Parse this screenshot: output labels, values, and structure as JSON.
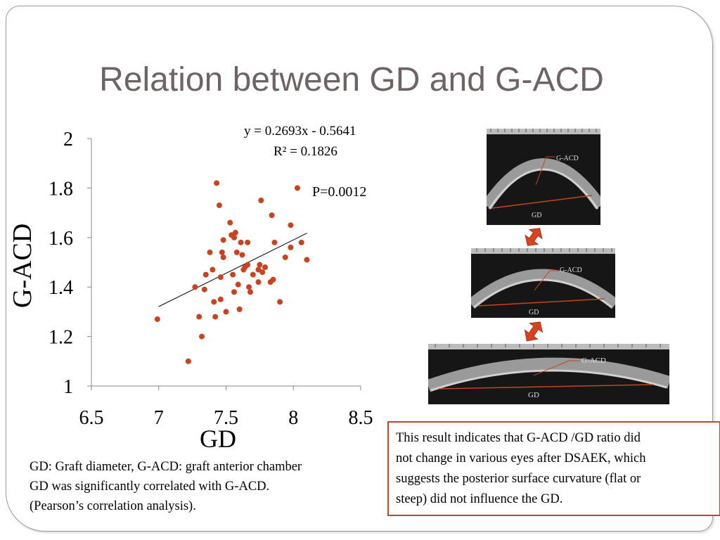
{
  "slide": {
    "title": "Relation between GD and G-ACD",
    "equation_line1": "y = 0.2693x - 0.5641",
    "equation_line2": "R² = 0.1826",
    "p_value": "P=0.0012",
    "caption_lines": [
      "GD: Graft diameter, G-ACD: graft  anterior chamber",
      "GD was significantly correlated with G-ACD.",
      "(Pearson’s correlation analysis)."
    ],
    "result_text_lines": [
      "This result indicates that G-ACD /GD ratio did",
      "not change in various eyes after DSAEK, which",
      "suggests the posterior surface curvature (flat or",
      "steep) did not influence the GD."
    ],
    "images": [
      {
        "label_gacd": "G-ACD",
        "label_gd": "GD"
      },
      {
        "label_gacd": "G-ACD",
        "label_gd": "GD"
      },
      {
        "label_gacd": "G-ACD",
        "label_gd": "GD"
      }
    ],
    "colors": {
      "points": "#c8431f",
      "arrow": "#d8431e",
      "title": "#6e6464",
      "box_border": "#c7432a"
    }
  },
  "chart_data": {
    "type": "scatter",
    "xlabel": "GD",
    "ylabel": "G-ACD",
    "xlim": [
      6.5,
      8.5
    ],
    "ylim": [
      1,
      2
    ],
    "xticks": [
      "6.5",
      "7",
      "7.5",
      "8",
      "8.5"
    ],
    "yticks": [
      "1",
      "1.2",
      "1.4",
      "1.6",
      "1.8",
      "2"
    ],
    "trendline": {
      "slope": 0.2693,
      "intercept": -0.5641,
      "x_range": [
        7.0,
        8.1
      ]
    },
    "points": [
      [
        6.99,
        1.27
      ],
      [
        7.22,
        1.1
      ],
      [
        7.27,
        1.4
      ],
      [
        7.3,
        1.28
      ],
      [
        7.32,
        1.2
      ],
      [
        7.34,
        1.39
      ],
      [
        7.35,
        1.45
      ],
      [
        7.38,
        1.54
      ],
      [
        7.4,
        1.47
      ],
      [
        7.41,
        1.34
      ],
      [
        7.42,
        1.28
      ],
      [
        7.43,
        1.82
      ],
      [
        7.45,
        1.73
      ],
      [
        7.46,
        1.35
      ],
      [
        7.46,
        1.44
      ],
      [
        7.47,
        1.54
      ],
      [
        7.48,
        1.52
      ],
      [
        7.48,
        1.59
      ],
      [
        7.5,
        1.3
      ],
      [
        7.53,
        1.66
      ],
      [
        7.54,
        1.61
      ],
      [
        7.55,
        1.45
      ],
      [
        7.56,
        1.6
      ],
      [
        7.56,
        1.38
      ],
      [
        7.57,
        1.62
      ],
      [
        7.58,
        1.54
      ],
      [
        7.59,
        1.41
      ],
      [
        7.6,
        1.31
      ],
      [
        7.61,
        1.58
      ],
      [
        7.62,
        1.53
      ],
      [
        7.63,
        1.47
      ],
      [
        7.64,
        1.48
      ],
      [
        7.66,
        1.49
      ],
      [
        7.66,
        1.58
      ],
      [
        7.67,
        1.4
      ],
      [
        7.68,
        1.38
      ],
      [
        7.7,
        1.45
      ],
      [
        7.74,
        1.42
      ],
      [
        7.74,
        1.47
      ],
      [
        7.75,
        1.49
      ],
      [
        7.76,
        1.75
      ],
      [
        7.77,
        1.46
      ],
      [
        7.79,
        1.48
      ],
      [
        7.83,
        1.42
      ],
      [
        7.84,
        1.69
      ],
      [
        7.85,
        1.43
      ],
      [
        7.86,
        1.58
      ],
      [
        7.9,
        1.34
      ],
      [
        7.94,
        1.52
      ],
      [
        7.98,
        1.56
      ],
      [
        7.98,
        1.65
      ],
      [
        8.03,
        1.8
      ],
      [
        8.06,
        1.58
      ],
      [
        8.1,
        1.51
      ]
    ]
  }
}
